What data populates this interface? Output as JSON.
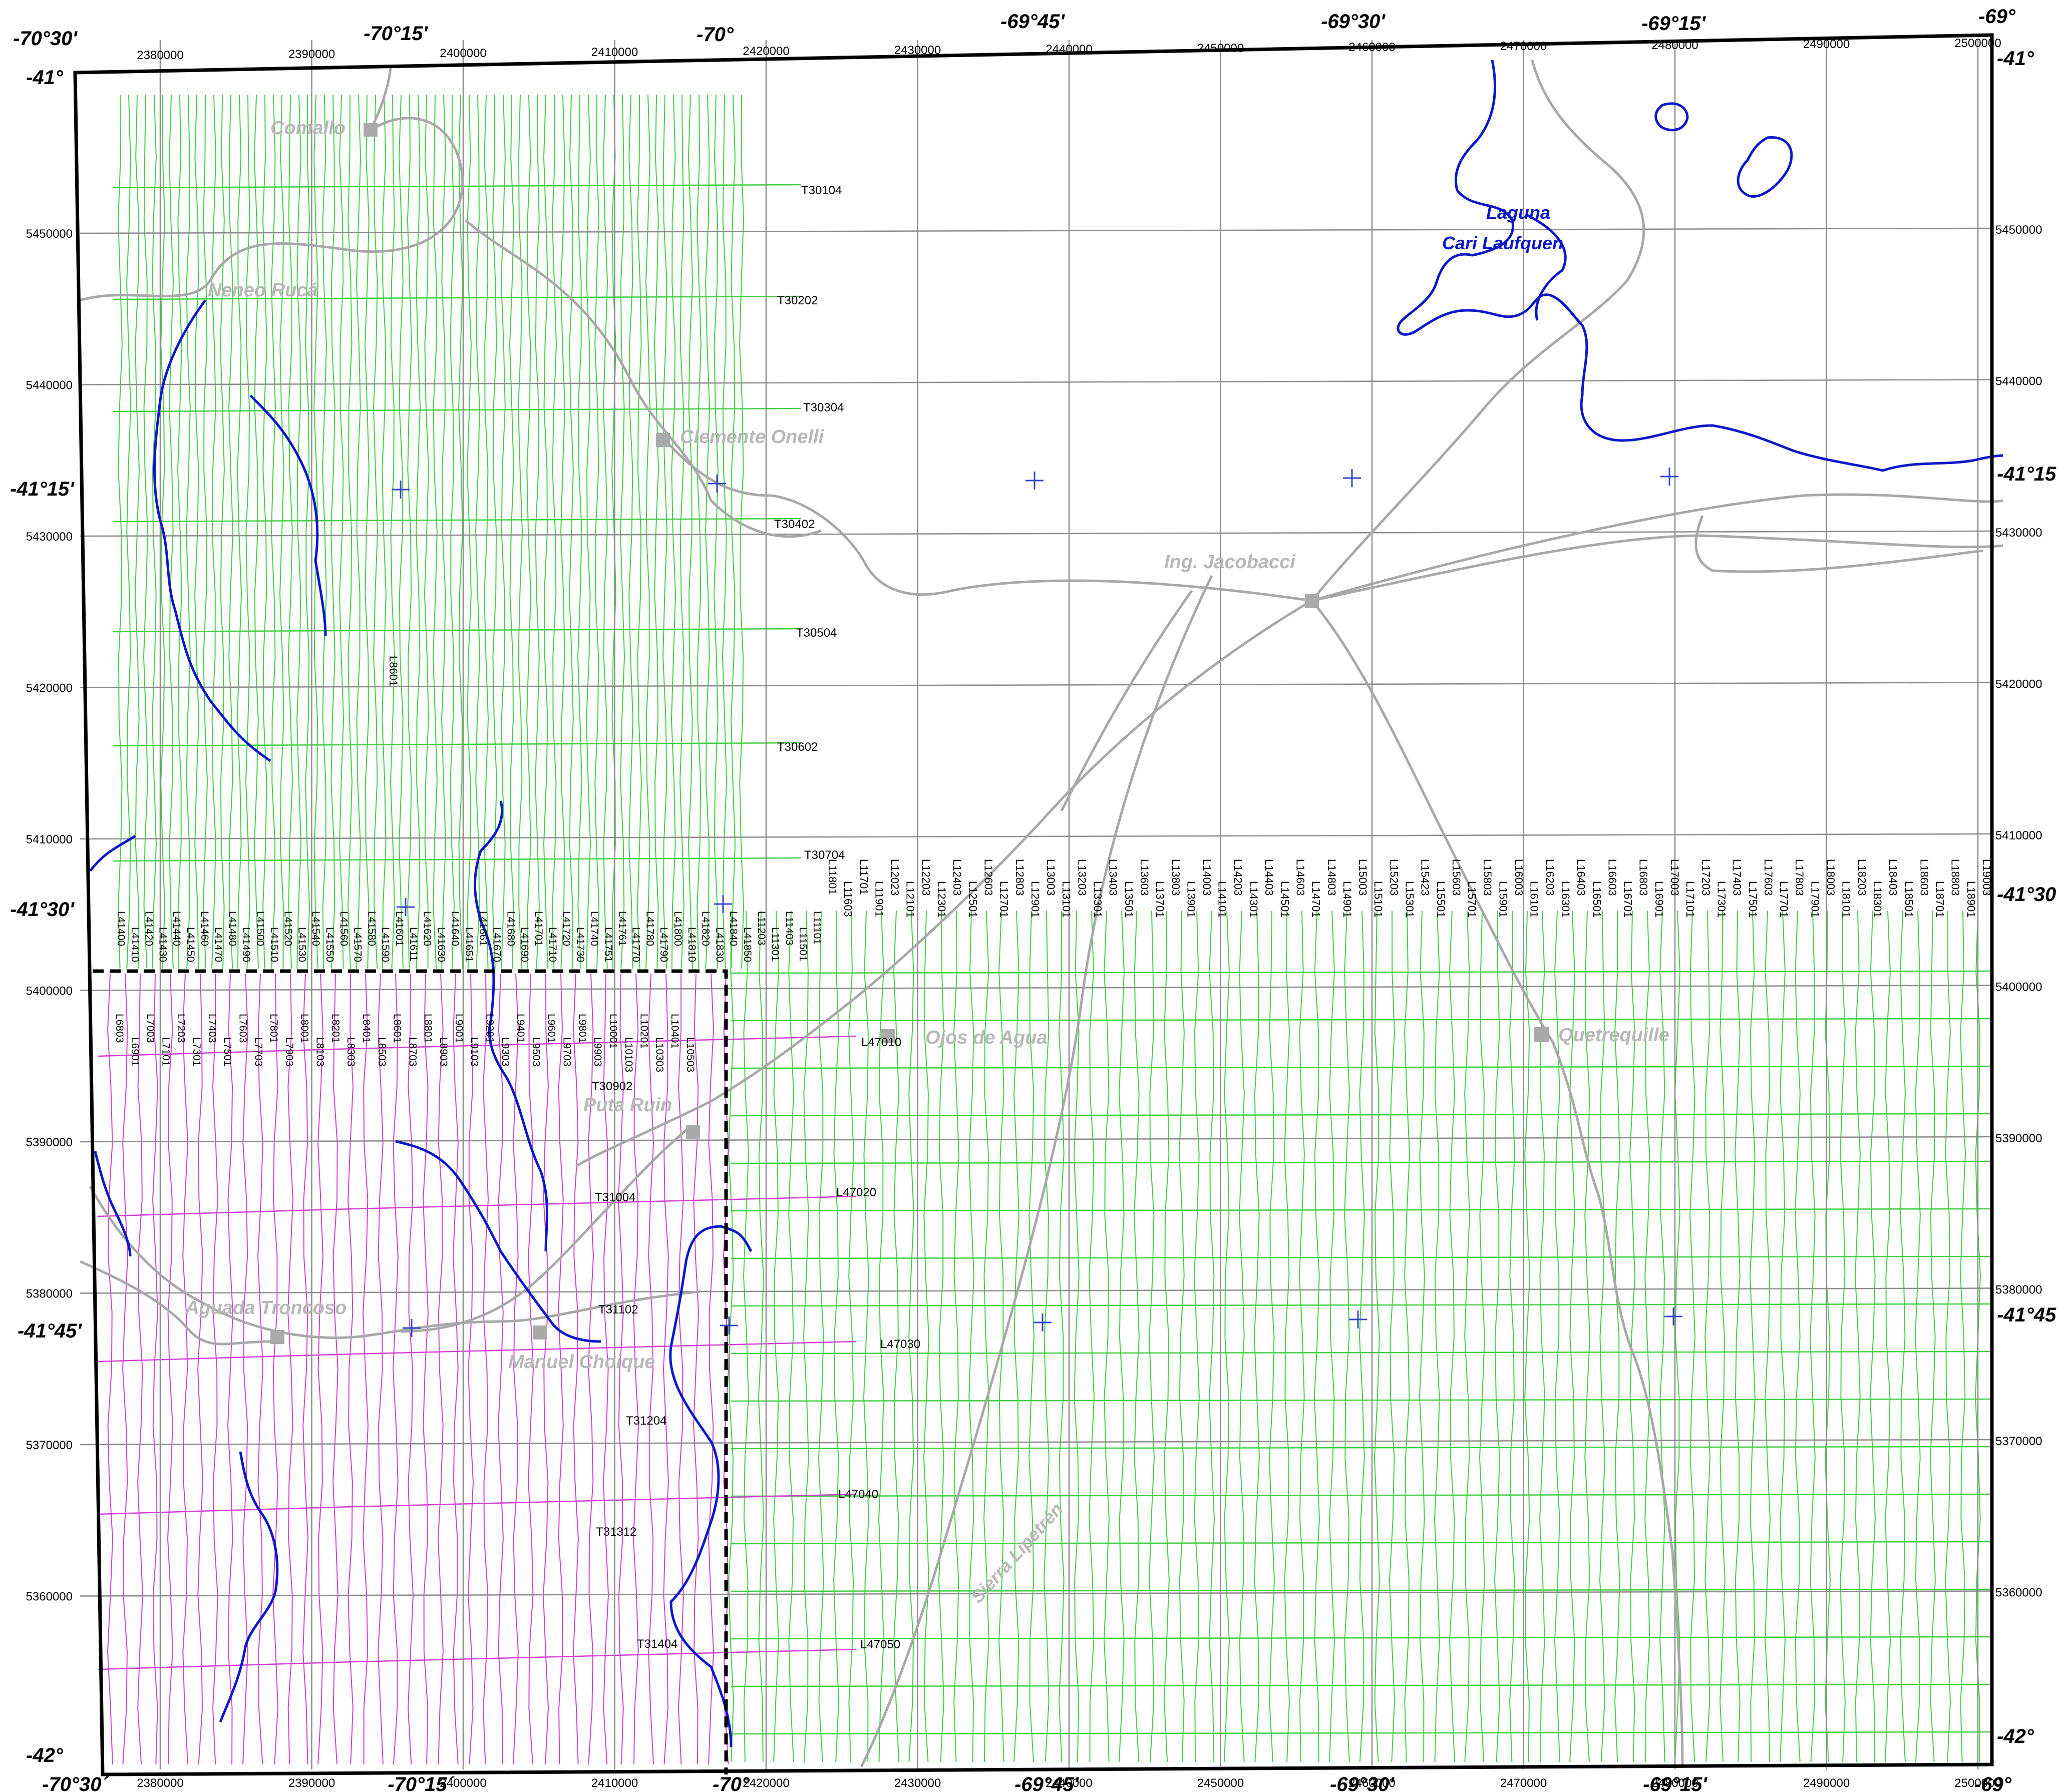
{
  "map": {
    "degree_labels": {
      "top": [
        "-70°30'",
        "-70°15'",
        "-70°",
        "-69°45'",
        "-69°30'",
        "-69°15'",
        "-69°"
      ],
      "bottom": [
        "-70°30´",
        "-70°15´",
        "-70°",
        "-69°45'",
        "-69°30'",
        "-69°15'",
        "-69°"
      ],
      "left": [
        "-41°",
        "-41°15'",
        "-41°30'",
        "-41°45'",
        "-42°"
      ],
      "right": [
        "-41°",
        "-41°15",
        "-41°30",
        "-41°45",
        "-42°"
      ]
    },
    "eastings": [
      "2380000",
      "2390000",
      "2400000",
      "2410000",
      "2420000",
      "2430000",
      "2440000",
      "2450000",
      "2460000",
      "2470000",
      "2480000",
      "2490000",
      "2500000"
    ],
    "northings": [
      "5450000",
      "5440000",
      "5430000",
      "5420000",
      "5410000",
      "5400000",
      "5390000",
      "5380000",
      "5370000",
      "5360000"
    ],
    "towns": [
      {
        "name": "Comallo"
      },
      {
        "name": "Neneo Rucá"
      },
      {
        "name": "Clemente Onelli"
      },
      {
        "name": "Ing. Jacobacci"
      },
      {
        "name": "Ojos de Agua"
      },
      {
        "name": "Quetrequille"
      },
      {
        "name": "Puta Ruin"
      },
      {
        "name": "Aguada Troncoso"
      },
      {
        "name": "Manuel Choique"
      },
      {
        "name": "Sierra Lipetrén"
      }
    ],
    "lake": {
      "line1": "Laguna",
      "line2": "Cari Laufquen"
    },
    "tie_lines_north": [
      "T30104",
      "T30202",
      "T30304",
      "T30402",
      "T30504",
      "T30602",
      "T30704"
    ],
    "tie_lines_south": [
      "T30902",
      "T31004",
      "T31102",
      "T31204",
      "T31312",
      "T31404"
    ],
    "control_lines": [
      "L47010",
      "L47020",
      "L47030",
      "L47040",
      "L47050"
    ],
    "misc_line_label": "L8601",
    "upper_line_labels": [
      "L11801",
      "L11603",
      "L11701",
      "L11901",
      "L12023",
      "L12101",
      "L12203",
      "L12301",
      "L12403",
      "L12501",
      "L12603",
      "L12701",
      "L12803",
      "L12901",
      "L13003",
      "L13101",
      "L13203",
      "L13301",
      "L13403",
      "L13501",
      "L13603",
      "L13701",
      "L13803",
      "L13901",
      "L14003",
      "L14101",
      "L14203",
      "L14301",
      "L14403",
      "L14501",
      "L14603",
      "L14701",
      "L14803",
      "L14901",
      "L15003",
      "L15101",
      "L15203",
      "L15301",
      "L15423",
      "L15501",
      "L15603",
      "L15701",
      "L15803",
      "L15901",
      "L16003",
      "L16101",
      "L16203",
      "L16301",
      "L16403",
      "L16501",
      "L16603",
      "L16701",
      "L16803",
      "L16901",
      "L17003",
      "L17101",
      "L17203",
      "L17301",
      "L17403",
      "L17501",
      "L17603",
      "L17701",
      "L17803",
      "L17901",
      "L18003",
      "L18101",
      "L18203",
      "L18301",
      "L18403",
      "L18501",
      "L18603",
      "L18701",
      "L18803",
      "L18901",
      "L19003"
    ],
    "cluster_labels": [
      "L41400",
      "L41410",
      "L41420",
      "L41430",
      "L41440",
      "L41450",
      "L41460",
      "L41470",
      "L41480",
      "L41490",
      "L41500",
      "L41510",
      "L41520",
      "L41530",
      "L41540",
      "L41550",
      "L41560",
      "L41570",
      "L41580",
      "L41590",
      "L41601",
      "L41611",
      "L41620",
      "L41630",
      "L41640",
      "L41651",
      "L41661",
      "L41670",
      "L41680",
      "L41690",
      "L41701",
      "L41710",
      "L41720",
      "L41730",
      "L41740",
      "L41751",
      "L41761",
      "L41770",
      "L41780",
      "L41790",
      "L41800",
      "L41810",
      "L41820",
      "L41830",
      "L41840",
      "L41850",
      "L11203",
      "L11301",
      "L11403",
      "L11501",
      "L11101"
    ],
    "lower_line_labels": [
      "L6803",
      "L6901",
      "L7003",
      "L7101",
      "L7203",
      "L7301",
      "L7403",
      "L7501",
      "L7603",
      "L7703",
      "L7801",
      "L7903",
      "L8001",
      "L8103",
      "L8201",
      "L8303",
      "L8401",
      "L8503",
      "L8601",
      "L8703",
      "L8801",
      "L8903",
      "L9001",
      "L9103",
      "L9201",
      "L9303",
      "L9401",
      "L9503",
      "L9601",
      "L9703",
      "L9801",
      "L9903",
      "L10001",
      "L10103",
      "L10201",
      "L10303",
      "L10401",
      "L10503"
    ],
    "colors": {
      "green_lines": "#3ecf3e",
      "magenta_lines": "#d23cd2",
      "rivers": "#0a18c8",
      "roads": "#a8a8a8",
      "grid": "#8a8a8a",
      "frame": "#000000"
    }
  }
}
